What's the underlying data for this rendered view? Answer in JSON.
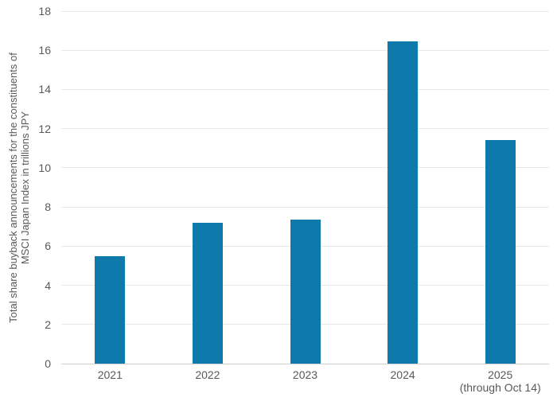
{
  "chart_data": {
    "type": "bar",
    "title": "",
    "categories": [
      "2021",
      "2022",
      "2023",
      "2024",
      "2025"
    ],
    "category_sublabels": [
      "",
      "",
      "",
      "",
      "(through Oct 14)"
    ],
    "values": [
      5.5,
      7.2,
      7.35,
      16.45,
      11.4
    ],
    "series": [
      {
        "name": "Total share buyback announcements",
        "values": [
          5.5,
          7.2,
          7.35,
          16.45,
          11.4
        ]
      }
    ],
    "xlabel": "",
    "ylabel_line1": "Total share buyback announcements for the constituents of",
    "ylabel_line2": "MSCI Japan Index in trillions JPY",
    "ylim": [
      0,
      18
    ],
    "yticks": [
      0,
      2,
      4,
      6,
      8,
      10,
      12,
      14,
      16,
      18
    ],
    "legend": "none",
    "grid": true,
    "colors": {
      "bar": "#0e7aab",
      "grid_line": "#e9e9e9",
      "axis_line": "#d0d0d0",
      "tick_text": "#595959",
      "background": "#ffffff"
    }
  }
}
